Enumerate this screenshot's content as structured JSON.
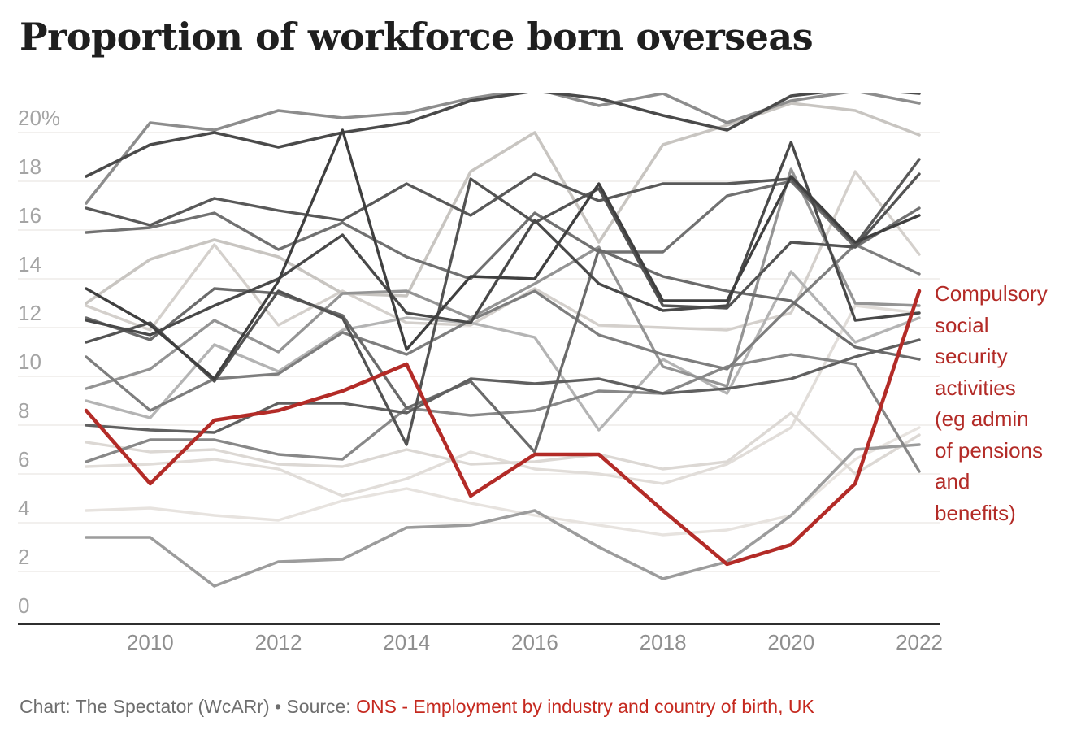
{
  "title": "Proportion of workforce born overseas",
  "annotation": {
    "text": "Compulsory\nsocial\nsecurity\nactivities\n(eg admin\nof pensions\nand\nbenefits)"
  },
  "footer": {
    "credit": "Chart: The Spectator (WcARr) • Source: ",
    "source_link": "ONS - Employment by industry and country of birth, UK"
  },
  "colors": {
    "highlight": "#b32b27",
    "grid": "#e9e6e3",
    "axis": "#2f2f2f",
    "y_tick_label": "#a4a4a4",
    "x_tick_label": "#8f8f8f",
    "source_link": "#c5291f"
  },
  "chart_data": {
    "type": "line",
    "title": "Proportion of workforce born overseas",
    "xlabel": "",
    "ylabel": "",
    "x": [
      2009,
      2010,
      2011,
      2012,
      2013,
      2014,
      2015,
      2016,
      2017,
      2018,
      2019,
      2020,
      2021,
      2022
    ],
    "x_ticks": [
      2010,
      2012,
      2014,
      2016,
      2018,
      2020,
      2022
    ],
    "y_ticks": [
      0,
      2,
      4,
      6,
      8,
      10,
      12,
      14,
      16,
      18,
      20
    ],
    "y_top_tick_label": "20%",
    "ylim": [
      0,
      21.5
    ],
    "grid": true,
    "legend_position": "right-annotation",
    "highlight_series": {
      "name": "Compulsory social security activities (eg admin of pensions and benefits)",
      "color": "#b32b27",
      "width": 4.5,
      "values": [
        8.6,
        5.6,
        8.2,
        8.6,
        9.4,
        10.5,
        5.1,
        6.8,
        6.8,
        4.5,
        2.3,
        3.1,
        5.6,
        13.5
      ]
    },
    "gray_series": [
      {
        "color": "#e7e3df",
        "width": 3.4,
        "values": [
          4.5,
          4.6,
          4.3,
          4.1,
          4.9,
          5.4,
          4.8,
          4.3,
          3.9,
          3.5,
          3.7,
          4.3,
          6.6,
          7.9
        ]
      },
      {
        "color": "#e1ddd9",
        "width": 3.4,
        "values": [
          6.3,
          6.4,
          6.6,
          6.2,
          5.1,
          5.8,
          6.9,
          6.2,
          6.0,
          5.6,
          6.4,
          7.9,
          12.9,
          12.6
        ]
      },
      {
        "color": "#dcd8d4",
        "width": 3.4,
        "values": [
          7.3,
          6.9,
          7.0,
          6.4,
          6.3,
          7.0,
          6.4,
          6.5,
          6.8,
          6.2,
          6.5,
          8.5,
          6.0,
          7.6
        ]
      },
      {
        "color": "#d4d0cc",
        "width": 3.4,
        "values": [
          12.9,
          11.9,
          15.4,
          12.1,
          13.5,
          12.2,
          12.1,
          13.6,
          12.1,
          12.0,
          11.9,
          12.6,
          18.4,
          15.0
        ]
      },
      {
        "color": "#c8c5c1",
        "width": 3.6,
        "values": [
          13.0,
          14.8,
          15.6,
          14.9,
          13.4,
          13.3,
          18.4,
          20.0,
          15.5,
          19.5,
          20.3,
          21.2,
          20.9,
          19.9
        ]
      },
      {
        "color": "#b4b4b4",
        "width": 3.4,
        "values": [
          9.0,
          8.3,
          11.3,
          10.2,
          11.9,
          12.4,
          12.2,
          11.6,
          7.8,
          10.7,
          9.3,
          14.3,
          11.4,
          12.4
        ]
      },
      {
        "color": "#9c9c9c",
        "width": 3.6,
        "values": [
          3.4,
          3.4,
          1.4,
          2.4,
          2.5,
          3.8,
          3.9,
          4.5,
          3.0,
          1.7,
          2.4,
          4.3,
          7.0,
          7.2
        ]
      },
      {
        "color": "#949494",
        "width": 3.4,
        "values": [
          9.5,
          10.3,
          12.3,
          11.0,
          13.4,
          13.5,
          12.4,
          13.8,
          15.3,
          10.4,
          9.6,
          18.5,
          13.0,
          12.9
        ]
      },
      {
        "color": "#888888",
        "width": 3.4,
        "values": [
          6.5,
          7.4,
          7.4,
          6.8,
          6.6,
          8.7,
          8.4,
          8.6,
          9.4,
          9.3,
          10.4,
          10.9,
          10.5,
          6.1
        ]
      },
      {
        "color": "#8d8d8d",
        "width": 3.6,
        "values": [
          17.1,
          20.4,
          20.1,
          20.9,
          20.6,
          20.8,
          21.4,
          21.8,
          21.1,
          21.6,
          20.4,
          21.3,
          21.7,
          21.2
        ]
      },
      {
        "color": "#7e7e7e",
        "width": 3.4,
        "values": [
          10.8,
          8.6,
          9.9,
          10.1,
          11.8,
          10.9,
          12.3,
          13.5,
          11.7,
          10.9,
          10.3,
          12.9,
          15.4,
          14.2
        ]
      },
      {
        "color": "#717171",
        "width": 3.4,
        "values": [
          15.9,
          16.1,
          16.7,
          15.2,
          16.3,
          14.9,
          14.0,
          16.7,
          15.1,
          15.1,
          17.4,
          18.0,
          15.3,
          16.9
        ]
      },
      {
        "color": "#6b6b6b",
        "width": 3.4,
        "values": [
          12.4,
          11.5,
          13.6,
          13.4,
          12.5,
          8.7,
          9.8,
          6.9,
          15.2,
          14.1,
          13.5,
          13.1,
          11.2,
          10.7
        ]
      },
      {
        "color": "#606060",
        "width": 3.4,
        "values": [
          8.0,
          7.8,
          7.7,
          8.9,
          8.9,
          8.5,
          9.9,
          9.7,
          9.9,
          9.3,
          9.5,
          9.9,
          10.8,
          11.5
        ]
      },
      {
        "color": "#595959",
        "width": 3.4,
        "values": [
          16.9,
          16.2,
          17.3,
          16.8,
          16.4,
          17.9,
          16.6,
          18.3,
          17.2,
          17.9,
          17.9,
          18.1,
          15.4,
          18.9
        ]
      },
      {
        "color": "#535353",
        "width": 3.4,
        "values": [
          11.4,
          12.2,
          9.8,
          13.5,
          12.4,
          7.2,
          18.1,
          16.3,
          17.7,
          12.9,
          12.8,
          15.5,
          15.3,
          18.3
        ]
      },
      {
        "color": "#494949",
        "width": 3.4,
        "values": [
          12.3,
          11.7,
          12.9,
          14.0,
          15.8,
          12.6,
          12.2,
          16.4,
          13.8,
          12.7,
          12.9,
          19.6,
          12.3,
          12.6
        ]
      },
      {
        "color": "#4a4a4a",
        "width": 3.6,
        "values": [
          18.2,
          19.5,
          20.0,
          19.4,
          20.0,
          20.4,
          21.3,
          21.7,
          21.4,
          20.7,
          20.1,
          21.5,
          21.8,
          21.6
        ]
      },
      {
        "color": "#3f3f3f",
        "width": 3.4,
        "values": [
          13.6,
          12.1,
          9.9,
          13.9,
          20.1,
          11.1,
          14.1,
          14.0,
          17.9,
          13.1,
          13.1,
          18.2,
          15.5,
          16.6
        ]
      }
    ]
  }
}
